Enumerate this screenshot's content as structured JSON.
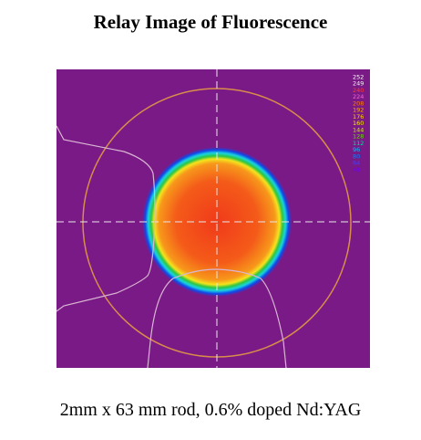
{
  "title": "Relay Image of Fluorescence",
  "caption": "2mm x 63 mm rod, 0.6% doped Nd:YAG",
  "colors": {
    "background": "#7a1a86",
    "circle": "#d98d4a",
    "crosshair": "#e8e8e8",
    "profile": "#d9b6d3",
    "beam_center": "#f03a1a",
    "beam_mid": "#f7981b",
    "beam_yellow": "#f5e31d",
    "beam_green": "#2ec641",
    "beam_cyan": "#18d3df",
    "beam_blue": "#1148e9"
  },
  "color_scale": {
    "labels": [
      "252",
      "249",
      "240",
      "224",
      "208",
      "192",
      "176",
      "160",
      "144",
      "128",
      "112",
      "96",
      "80",
      "64",
      "48"
    ],
    "colors": [
      "#ffffff",
      "#f2f2f2",
      "#ff3a3a",
      "#f266d2",
      "#ff7f00",
      "#ffb000",
      "#ffd400",
      "#f7f000",
      "#c8f000",
      "#60e000",
      "#00e0a0",
      "#00c0ff",
      "#0080ff",
      "#4040ff",
      "#7000ff"
    ]
  }
}
